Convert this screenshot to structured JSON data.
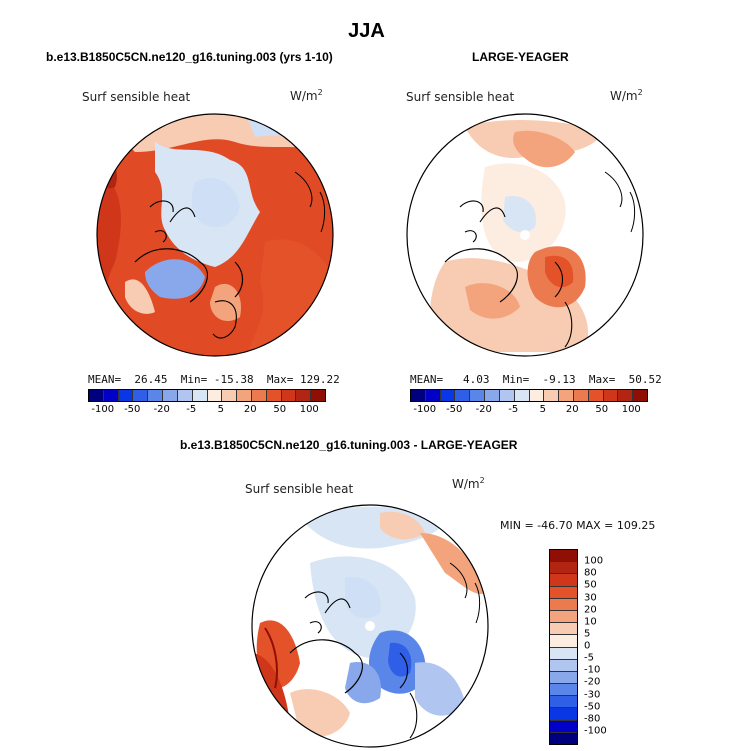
{
  "figure": {
    "title": "JJA"
  },
  "colors": {
    "scale": [
      "#00007f",
      "#0000c7",
      "#0a37e6",
      "#2f5fe6",
      "#5a86ea",
      "#89a8ec",
      "#b1c5f1",
      "#d8e5f5",
      "#fdece0",
      "#f8ccb2",
      "#f3a47c",
      "#ec7a4f",
      "#e4522a",
      "#d0361a",
      "#b22512",
      "#8f0f05"
    ],
    "land_warm_deep": "#e0421f",
    "land_warm_mid": "#e9613a",
    "ice_blue": "#cfe0f6"
  },
  "panels": [
    {
      "id": "model",
      "heading": "b.e13.B1850C5CN.ne120_g16.tuning.003 (yrs 1-10)",
      "variable": "Surf sensible heat",
      "units": "W/m",
      "units_sup": "2",
      "stats": {
        "mean": "MEAN=  26.45",
        "min": "Min= -15.38",
        "max": "Max= 129.22"
      },
      "colorbar_labels": [
        "-100",
        "-50",
        "-20",
        "-5",
        "5",
        "20",
        "50",
        "100"
      ]
    },
    {
      "id": "obs",
      "heading": "LARGE-YEAGER",
      "variable": "Surf sensible heat",
      "units": "W/m",
      "units_sup": "2",
      "stats": {
        "mean": "MEAN=   4.03",
        "min": "Min=  -9.13",
        "max": "Max=  50.52"
      },
      "colorbar_labels": [
        "-100",
        "-50",
        "-20",
        "-5",
        "5",
        "20",
        "50",
        "100"
      ]
    },
    {
      "id": "diff",
      "heading": "b.e13.B1850C5CN.ne120_g16.tuning.003 - LARGE-YEAGER",
      "variable": "Surf sensible heat",
      "units": "W/m",
      "units_sup": "2",
      "minmax": "MIN = -46.70 MAX = 109.25",
      "colorbar_labels": [
        "100",
        "80",
        "50",
        "30",
        "20",
        "10",
        "5",
        "0",
        "-5",
        "-10",
        "-20",
        "-30",
        "-50",
        "-80",
        "-100"
      ],
      "colorbar_colors": [
        "#8f0f05",
        "#b22512",
        "#d0361a",
        "#e4522a",
        "#ec7a4f",
        "#f3a47c",
        "#f8ccb2",
        "#fdece0",
        "#d8e5f5",
        "#b1c5f1",
        "#89a8ec",
        "#5a86ea",
        "#2f5fe6",
        "#0a37e6",
        "#0000c7",
        "#00007f"
      ]
    }
  ]
}
